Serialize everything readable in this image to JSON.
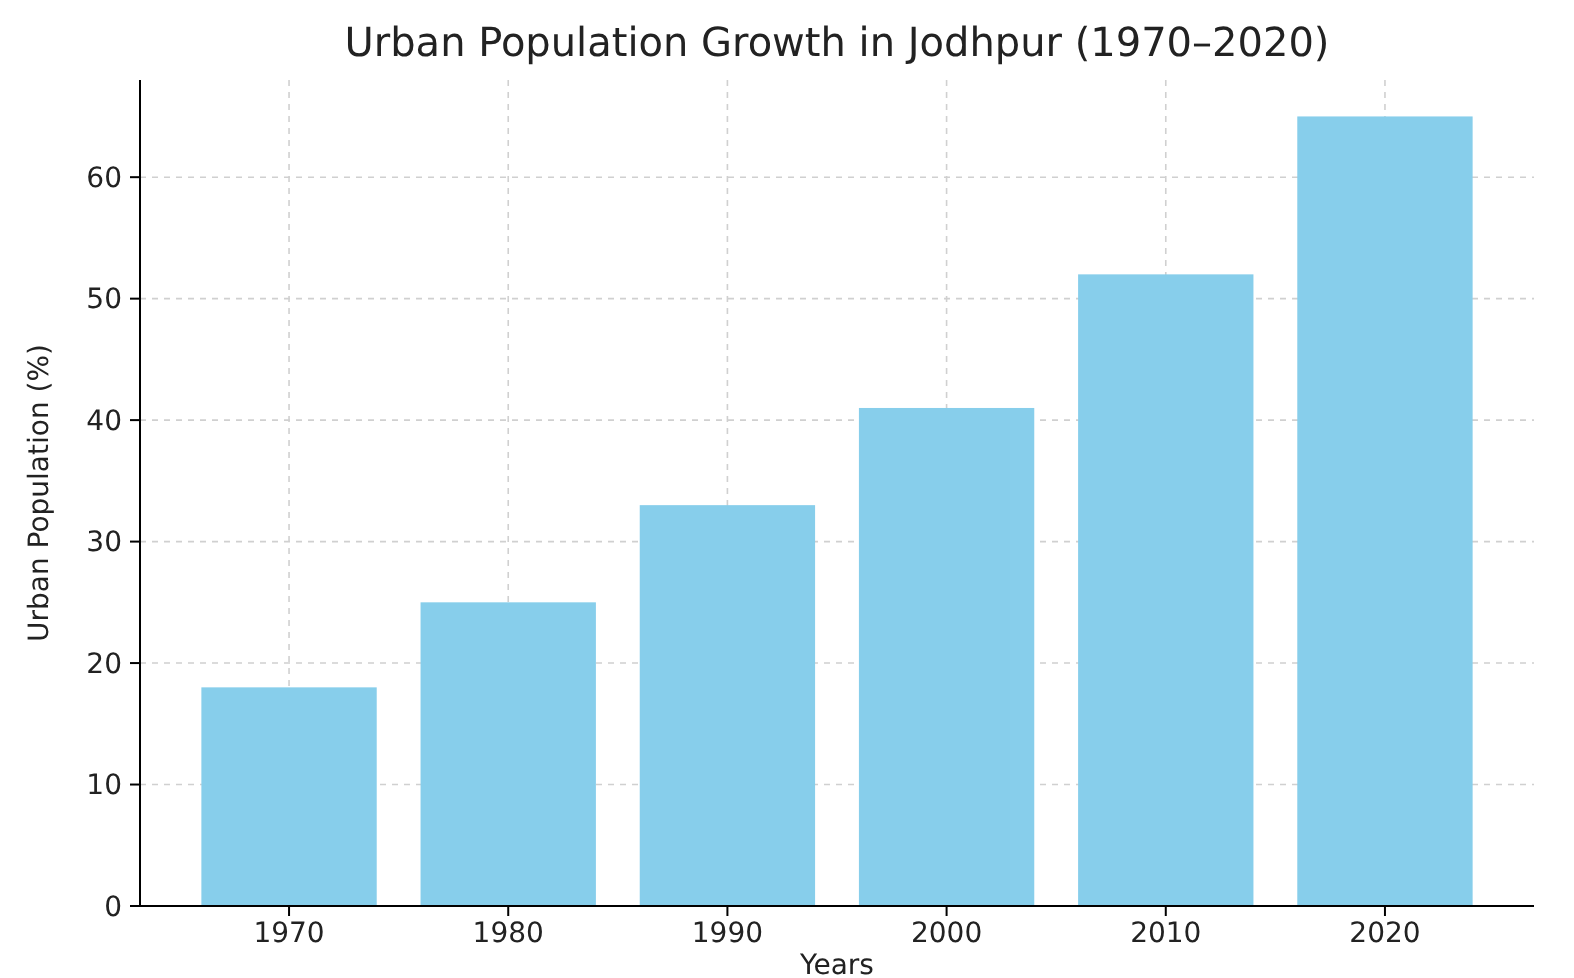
{
  "chart_data": {
    "type": "bar",
    "title": "Urban Population Growth in Jodhpur (1970–2020)",
    "xlabel": "Years",
    "ylabel": "Urban Population (%)",
    "categories": [
      "1970",
      "1980",
      "1990",
      "2000",
      "2010",
      "2020"
    ],
    "values": [
      18,
      25,
      33,
      41,
      52,
      65
    ],
    "color": "#87ceeb",
    "ylim": [
      0,
      68
    ],
    "yticks": [
      0,
      10,
      20,
      30,
      40,
      50,
      60
    ],
    "grid": true
  }
}
